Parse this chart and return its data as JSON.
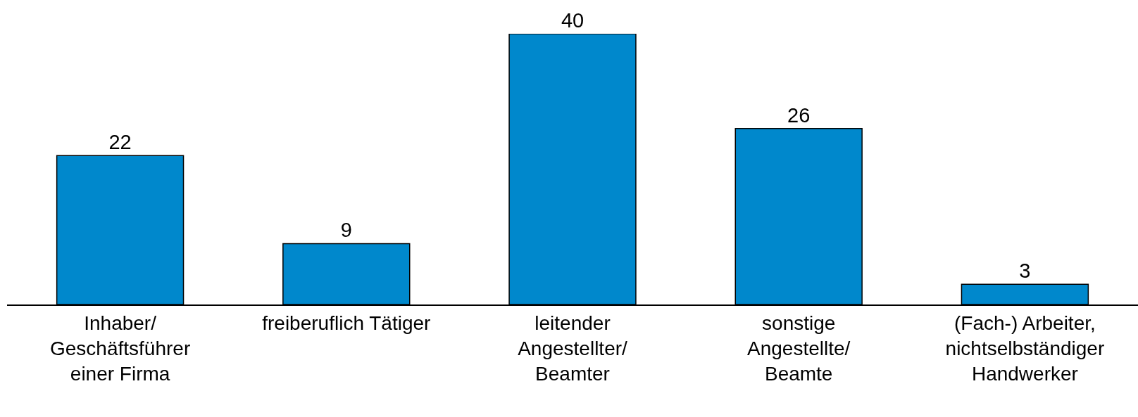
{
  "chart_data": {
    "type": "bar",
    "categories": [
      "Inhaber/\nGeschäftsführer\neiner Firma",
      "freiberuflich Tätiger",
      "leitender\nAngestellter/\nBeamter",
      "sonstige\nAngestellte/\nBeamte",
      "(Fach-) Arbeiter,\nnichtselbständiger\nHandwerker"
    ],
    "values": [
      22,
      9,
      40,
      26,
      3
    ],
    "color": "#0088cc",
    "data_labels": true,
    "tick_labels": "x"
  }
}
